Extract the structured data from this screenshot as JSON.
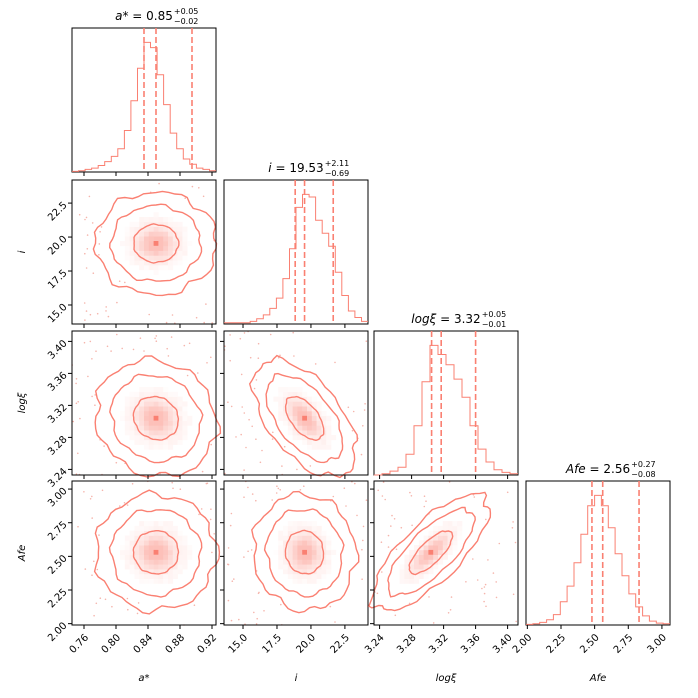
{
  "chart_data": {
    "type": "corner",
    "color": "#fa8072",
    "params": [
      {
        "key": "a",
        "label": "a*",
        "title_name": "a*",
        "title_value": "0.85",
        "plus": "+0.05",
        "minus": "−0.02",
        "range": [
          0.745,
          0.925
        ],
        "ticks": [
          0.76,
          0.8,
          0.84,
          0.88,
          0.92
        ],
        "tick_labels": [
          "0.76",
          "0.80",
          "0.84",
          "0.88",
          "0.92"
        ],
        "quantiles": [
          0.835,
          0.85,
          0.895
        ],
        "center": 0.85,
        "sd": 0.028
      },
      {
        "key": "i",
        "label": "i",
        "title_name": "i",
        "title_value": "19.53",
        "plus": "+2.11",
        "minus": "−0.69",
        "range": [
          13.6,
          24.2
        ],
        "ticks": [
          15.0,
          17.5,
          20.0,
          22.5
        ],
        "tick_labels": [
          "15.0",
          "17.5",
          "20.0",
          "22.5"
        ],
        "quantiles": [
          18.84,
          19.53,
          21.64
        ],
        "center": 19.53,
        "sd": 1.4
      },
      {
        "key": "logxi",
        "label": "logξ",
        "title_name": "logξ",
        "title_value": "3.32",
        "plus": "+0.05",
        "minus": "−0.01",
        "range": [
          3.233,
          3.413
        ],
        "ticks": [
          3.24,
          3.28,
          3.32,
          3.36,
          3.4
        ],
        "tick_labels": [
          "3.24",
          "3.28",
          "3.32",
          "3.36",
          "3.40"
        ],
        "quantiles": [
          3.305,
          3.317,
          3.36
        ],
        "center": 3.318,
        "sd": 0.027
      },
      {
        "key": "afe",
        "label": "Afe",
        "title_name": "Afe",
        "title_value": "2.56",
        "plus": "+0.27",
        "minus": "−0.08",
        "range": [
          1.99,
          3.06
        ],
        "ticks": [
          2.0,
          2.25,
          2.5,
          2.75,
          3.0
        ],
        "tick_labels": [
          "2.00",
          "2.25",
          "2.50",
          "2.75",
          "3.00"
        ],
        "quantiles": [
          2.48,
          2.56,
          2.83
        ],
        "center": 2.56,
        "sd": 0.16
      }
    ],
    "histograms": [
      {
        "param": "a",
        "bin_edges": [
          0.745,
          0.925
        ],
        "counts": [
          0.5,
          1,
          2,
          3,
          5,
          8,
          12,
          18,
          32,
          55,
          80,
          100,
          96,
          75,
          52,
          30,
          18,
          10,
          6,
          3,
          2,
          1
        ]
      },
      {
        "param": "i",
        "bin_edges": [
          13.6,
          24.2
        ],
        "counts": [
          1,
          1,
          1,
          1,
          2,
          4,
          7,
          12,
          20,
          35,
          58,
          90,
          100,
          98,
          80,
          70,
          60,
          40,
          22,
          10,
          5,
          2
        ]
      },
      {
        "param": "logxi",
        "bin_edges": [
          3.233,
          3.413
        ],
        "counts": [
          0,
          1,
          3,
          6,
          16,
          38,
          72,
          100,
          93,
          85,
          74,
          60,
          38,
          20,
          10,
          4,
          2,
          1
        ]
      },
      {
        "param": "afe",
        "bin_edges": [
          1.99,
          3.06
        ],
        "counts": [
          0.5,
          1,
          2,
          4,
          8,
          18,
          30,
          48,
          70,
          92,
          100,
          92,
          75,
          55,
          38,
          24,
          14,
          7,
          3,
          1.5,
          1
        ]
      }
    ],
    "pairs": [
      {
        "x": "a",
        "y": "i",
        "rho": 0.0,
        "peak": [
          0.85,
          19.53
        ]
      },
      {
        "x": "a",
        "y": "logxi",
        "rho": -0.1,
        "peak": [
          0.85,
          3.304
        ]
      },
      {
        "x": "i",
        "y": "logxi",
        "rho": -0.55,
        "peak": [
          19.53,
          3.304
        ]
      },
      {
        "x": "a",
        "y": "afe",
        "rho": 0.0,
        "peak": [
          0.85,
          2.53
        ]
      },
      {
        "x": "i",
        "y": "afe",
        "rho": -0.05,
        "peak": [
          19.53,
          2.53
        ]
      },
      {
        "x": "logxi",
        "y": "afe",
        "rho": 0.75,
        "peak": [
          3.304,
          2.53
        ]
      }
    ],
    "contour_levels_sigma": [
      1.0,
      2.0,
      2.7
    ]
  }
}
